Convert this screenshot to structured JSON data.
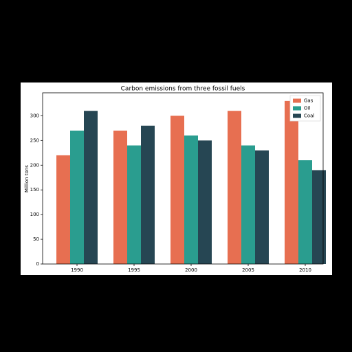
{
  "chart_data": {
    "type": "bar",
    "title": "Carbon emissions from three fossil fuels",
    "y_label": "Million tons",
    "categories": [
      "1990",
      "1995",
      "2000",
      "2005",
      "2010"
    ],
    "series": [
      {
        "name": "Gas",
        "color": "#e76f51",
        "values": [
          220,
          270,
          300,
          310,
          330
        ]
      },
      {
        "name": "Oil",
        "color": "#2a9d8f",
        "values": [
          270,
          240,
          260,
          240,
          210
        ]
      },
      {
        "name": "Coal",
        "color": "#264653",
        "values": [
          310,
          280,
          250,
          230,
          190
        ]
      }
    ],
    "ylim": [
      0,
      346.5
    ],
    "yticks": [
      0,
      50,
      100,
      150,
      200,
      250,
      300
    ],
    "legend": "upper right"
  }
}
